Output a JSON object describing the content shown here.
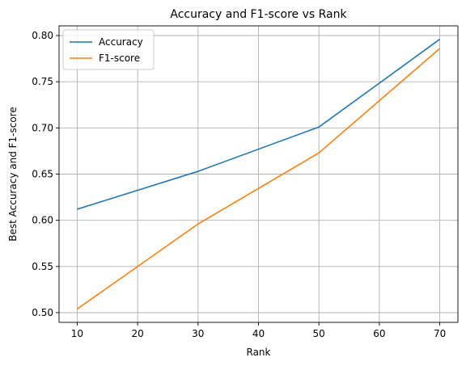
{
  "chart_data": {
    "type": "line",
    "title": "Accuracy and F1-score vs Rank",
    "xlabel": "Rank",
    "ylabel": "Best Accuracy and F1-score",
    "x": [
      10,
      30,
      50,
      70
    ],
    "series": [
      {
        "name": "Accuracy",
        "values": [
          0.612,
          0.653,
          0.701,
          0.796
        ],
        "color": "#1f77b4"
      },
      {
        "name": "F1-score",
        "values": [
          0.504,
          0.596,
          0.673,
          0.786
        ],
        "color": "#ff7f0e"
      }
    ],
    "xlim": [
      7,
      73
    ],
    "ylim": [
      0.4895,
      0.8105
    ],
    "xticks": [
      10,
      20,
      30,
      40,
      50,
      60,
      70
    ],
    "yticks": [
      0.5,
      0.55,
      0.6,
      0.65,
      0.7,
      0.75,
      0.8
    ],
    "ytick_labels": [
      "0.50",
      "0.55",
      "0.60",
      "0.65",
      "0.70",
      "0.75",
      "0.80"
    ],
    "grid": true,
    "legend_position": "top-left"
  }
}
